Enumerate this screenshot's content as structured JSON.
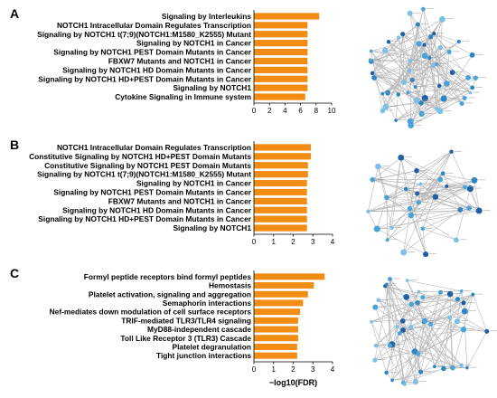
{
  "chart_data": [
    {
      "panel": "A",
      "type": "bar",
      "orientation": "horizontal",
      "categories": [
        "Signaling by Interleukins",
        "NOTCH1 Intracellular Domain Regulates Transcription",
        "Signaling by NOTCH1 t(7;9)(NOTCH1:M1580_K2555) Mutant",
        "Signaling by NOTCH1 in Cancer",
        "Signaling by NOTCH1 PEST Domain Mutants in Cancer",
        "FBXW7 Mutants and NOTCH1 in Cancer",
        "Signaling by NOTCH1 HD Domain Mutants in Cancer",
        "Signaling by NOTCH1 HD+PEST Domain Mutants in Cancer",
        "Signaling by NOTCH1",
        "Cytokine Signaling in Immune system"
      ],
      "values": [
        8.4,
        6.9,
        6.9,
        6.9,
        6.9,
        6.9,
        6.9,
        6.9,
        6.9,
        6.6
      ],
      "xlim": [
        0,
        10
      ],
      "xticks": [
        "0",
        "2",
        "4",
        "6",
        "8",
        "10"
      ],
      "bar_color": "#f28c12"
    },
    {
      "panel": "B",
      "type": "bar",
      "orientation": "horizontal",
      "categories": [
        "NOTCH1 Intracellular Domain Regulates Transcription",
        "Constitutive Signaling by NOTCH1 HD+PEST Domain Mutants",
        "Constitutive Signaling by NOTCH1 PEST Domain Mutants",
        "Signaling by NOTCH1 t(7;9)(NOTCH1:M1580_K2555) Mutant",
        "Signaling by NOTCH1 in Cancer",
        "Signaling by NOTCH1 PEST Domain Mutants in Cancer",
        "FBXW7 Mutants and NOTCH1 in Cancer",
        "Signaling by NOTCH1 HD Domain Mutants in Cancer",
        "Signaling by NOTCH1 HD+PEST Domain Mutants in Cancer",
        "Signaling by NOTCH1"
      ],
      "values": [
        2.9,
        2.9,
        2.75,
        2.75,
        2.7,
        2.7,
        2.7,
        2.7,
        2.7,
        2.7
      ],
      "xlim": [
        0,
        4
      ],
      "xticks": [
        "0",
        "1",
        "2",
        "3",
        "4"
      ],
      "bar_color": "#f28c12"
    },
    {
      "panel": "C",
      "type": "bar",
      "orientation": "horizontal",
      "categories": [
        "Formyl peptide receptors bind formyl peptides",
        "Hemostasis",
        "Platelet activation, signaling and aggregation",
        "Semaphorin interactions",
        "Nef-mediates down modulation of cell surface receptors",
        "TRIF-mediated TLR3/TLR4 signaling",
        "MyD88-independent cascade",
        "Toll Like Receptor 3 (TLR3) Cascade",
        "Platelet degranulation",
        "Tight junction interactions"
      ],
      "values": [
        3.6,
        3.05,
        2.75,
        2.5,
        2.35,
        2.25,
        2.25,
        2.25,
        2.2,
        2.2
      ],
      "xlim": [
        0,
        4
      ],
      "xticks": [
        "0",
        "1",
        "2",
        "3",
        "4"
      ],
      "xlabel": "−log10(FDR)",
      "bar_color": "#f28c12"
    }
  ],
  "panels": [
    {
      "letter": "A",
      "network": "protein interaction network",
      "node_count": 55
    },
    {
      "letter": "B",
      "network": "protein interaction network",
      "node_count": 30
    },
    {
      "letter": "C",
      "network": "protein interaction network",
      "node_count": 48
    }
  ],
  "node_colors": [
    "#1f5fa6",
    "#2d86c4",
    "#4aa3d8",
    "#7cc0e6"
  ],
  "edge_color": "#b8b8b8"
}
